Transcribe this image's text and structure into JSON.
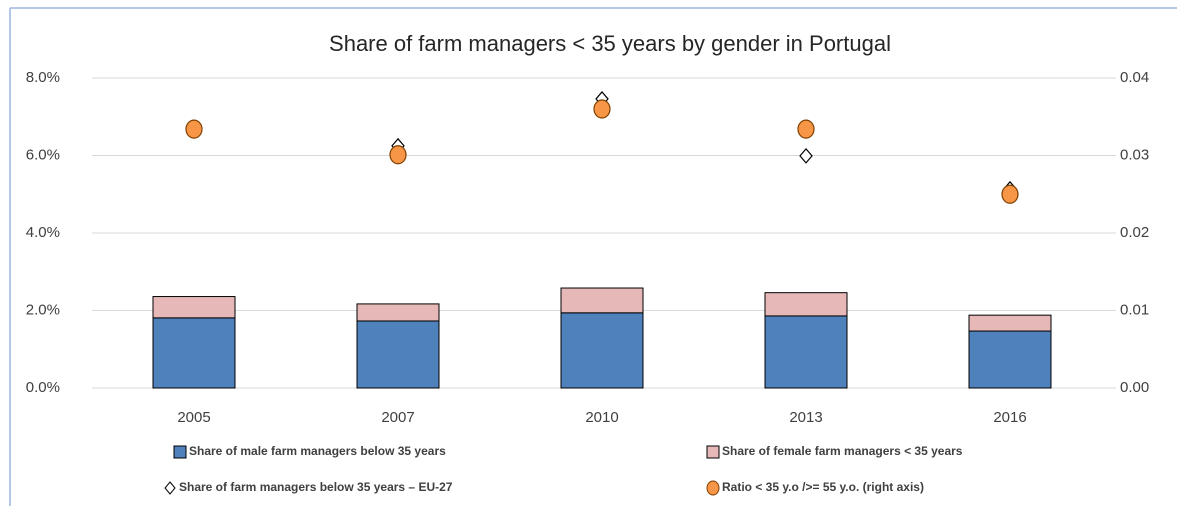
{
  "chart_data": {
    "type": "bar",
    "stacked": true,
    "title": "Share of farm managers < 35 years by gender in Portugal",
    "categories": [
      "2005",
      "2007",
      "2010",
      "2013",
      "2016"
    ],
    "series": [
      {
        "name": "Share of male farm managers below 35 years",
        "kind": "bar",
        "color": "#4f81bd",
        "values": [
          1.81,
          1.73,
          1.94,
          1.86,
          1.47
        ]
      },
      {
        "name": "Share of female farm managers < 35 years",
        "kind": "bar",
        "color": "#e6b9b8",
        "values": [
          0.55,
          0.44,
          0.64,
          0.6,
          0.41
        ]
      },
      {
        "name": "Share of farm managers below 35 years – EU-27",
        "kind": "scatter",
        "marker": "diamond",
        "color": "#ffffff",
        "values": [
          null,
          6.25,
          7.46,
          5.99,
          5.14
        ]
      },
      {
        "name": "Ratio < 35 y.o />= 55 y.o. (right axis)",
        "kind": "scatter",
        "marker": "circle",
        "color": "#f79646",
        "axis": "y2",
        "values": [
          0.0334,
          0.0301,
          0.036,
          0.0334,
          0.025
        ]
      }
    ],
    "ylim": [
      0,
      8
    ],
    "yticks": [
      {
        "value": 0,
        "label": "0.0%"
      },
      {
        "value": 2,
        "label": "2.0%"
      },
      {
        "value": 4,
        "label": "4.0%"
      },
      {
        "value": 6,
        "label": "6.0%"
      },
      {
        "value": 8,
        "label": "8.0%"
      }
    ],
    "y2lim": [
      0,
      0.04
    ],
    "y2ticks": [
      {
        "value": 0,
        "label": "0.00"
      },
      0.01,
      0.02,
      0.03,
      0.04
    ],
    "grid": true
  }
}
